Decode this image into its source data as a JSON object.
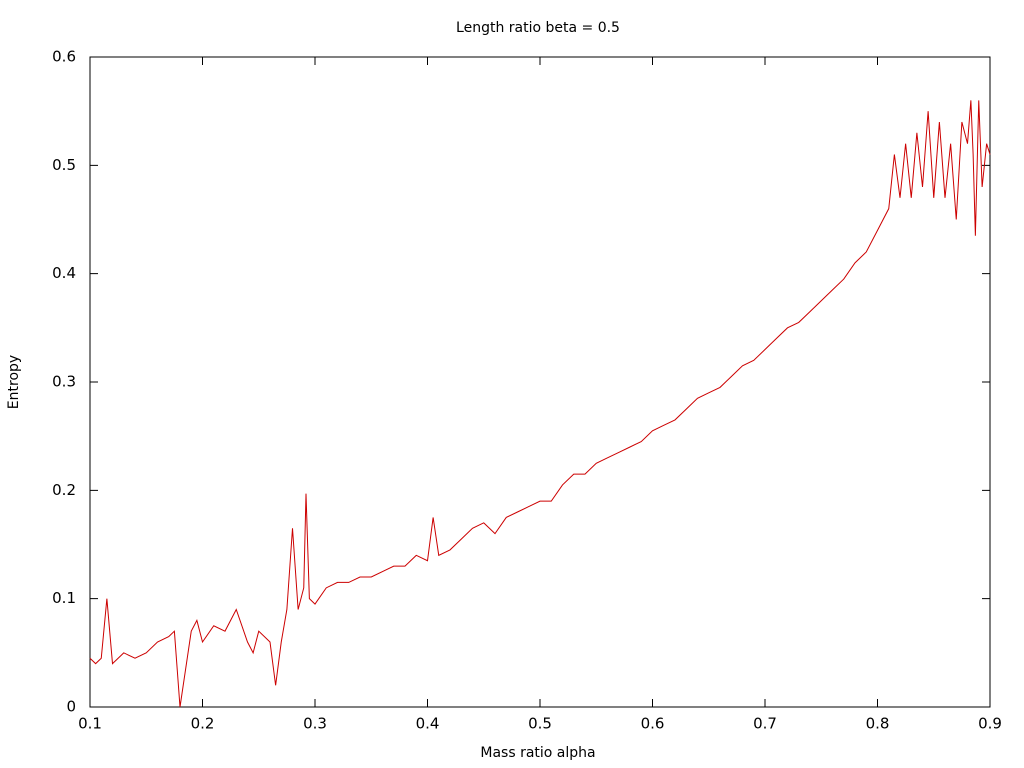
{
  "chart_data": {
    "type": "line",
    "title": "Length ratio beta = 0.5",
    "xlabel": "Mass ratio alpha",
    "ylabel": "Entropy",
    "x": [
      0.1,
      0.105,
      0.11,
      0.115,
      0.12,
      0.13,
      0.14,
      0.15,
      0.16,
      0.17,
      0.175,
      0.18,
      0.19,
      0.195,
      0.2,
      0.21,
      0.22,
      0.23,
      0.24,
      0.245,
      0.25,
      0.26,
      0.265,
      0.27,
      0.275,
      0.28,
      0.285,
      0.29,
      0.292,
      0.295,
      0.3,
      0.31,
      0.32,
      0.33,
      0.34,
      0.35,
      0.36,
      0.37,
      0.38,
      0.39,
      0.4,
      0.405,
      0.41,
      0.42,
      0.43,
      0.44,
      0.45,
      0.46,
      0.47,
      0.48,
      0.49,
      0.5,
      0.51,
      0.52,
      0.53,
      0.54,
      0.55,
      0.56,
      0.57,
      0.58,
      0.59,
      0.6,
      0.61,
      0.62,
      0.63,
      0.64,
      0.65,
      0.66,
      0.67,
      0.68,
      0.69,
      0.7,
      0.71,
      0.72,
      0.73,
      0.74,
      0.75,
      0.76,
      0.77,
      0.78,
      0.79,
      0.8,
      0.81,
      0.815,
      0.82,
      0.825,
      0.83,
      0.835,
      0.84,
      0.845,
      0.85,
      0.855,
      0.86,
      0.865,
      0.87,
      0.875,
      0.88,
      0.883,
      0.885,
      0.887,
      0.89,
      0.893,
      0.897,
      0.9
    ],
    "series": [
      {
        "color": "#cc0000",
        "values": [
          0.045,
          0.04,
          0.045,
          0.1,
          0.04,
          0.05,
          0.045,
          0.05,
          0.06,
          0.065,
          0.07,
          0.0,
          0.07,
          0.08,
          0.06,
          0.075,
          0.07,
          0.09,
          0.06,
          0.05,
          0.07,
          0.06,
          0.02,
          0.06,
          0.09,
          0.165,
          0.09,
          0.11,
          0.197,
          0.1,
          0.095,
          0.11,
          0.115,
          0.115,
          0.12,
          0.12,
          0.125,
          0.13,
          0.13,
          0.14,
          0.135,
          0.175,
          0.14,
          0.145,
          0.155,
          0.165,
          0.17,
          0.16,
          0.175,
          0.18,
          0.185,
          0.19,
          0.19,
          0.205,
          0.215,
          0.215,
          0.225,
          0.23,
          0.235,
          0.24,
          0.245,
          0.255,
          0.26,
          0.265,
          0.275,
          0.285,
          0.29,
          0.295,
          0.305,
          0.315,
          0.32,
          0.33,
          0.34,
          0.35,
          0.355,
          0.365,
          0.375,
          0.385,
          0.395,
          0.41,
          0.42,
          0.44,
          0.46,
          0.51,
          0.47,
          0.52,
          0.47,
          0.53,
          0.48,
          0.55,
          0.47,
          0.54,
          0.47,
          0.52,
          0.45,
          0.54,
          0.52,
          0.56,
          0.51,
          0.435,
          0.56,
          0.48,
          0.52,
          0.51
        ]
      }
    ],
    "xlim": [
      0.1,
      0.9
    ],
    "ylim": [
      0,
      0.6
    ],
    "xticks": [
      0.1,
      0.2,
      0.3,
      0.4,
      0.5,
      0.6,
      0.7,
      0.8,
      0.9
    ],
    "yticks": [
      0,
      0.1,
      0.2,
      0.3,
      0.4,
      0.5,
      0.6
    ]
  }
}
